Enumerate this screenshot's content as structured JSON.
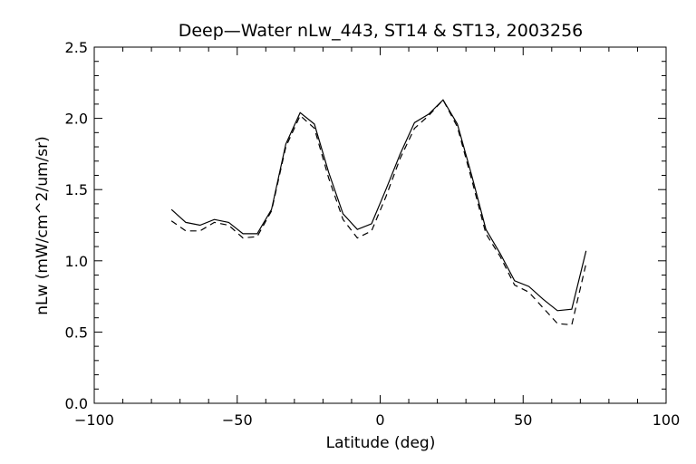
{
  "chart_data": {
    "type": "line",
    "title": "Deep—Water nLw_443, ST14 & ST13, 2003256",
    "xlabel": "Latitude (deg)",
    "ylabel": "nLw (mW/cm^2/um/sr)",
    "xlim": [
      -100,
      100
    ],
    "ylim": [
      0.0,
      2.5
    ],
    "x_major_ticks": [
      -100,
      -50,
      0,
      50,
      100
    ],
    "x_tick_labels": [
      "−100",
      "−50",
      "0",
      "50",
      "100"
    ],
    "x_minor_step": 10,
    "y_major_ticks": [
      0.0,
      0.5,
      1.0,
      1.5,
      2.0,
      2.5
    ],
    "y_tick_labels": [
      "0.0",
      "0.5",
      "1.0",
      "1.5",
      "2.0",
      "2.5"
    ],
    "y_minor_step": 0.1,
    "grid": false,
    "legend": "none",
    "line_color": "#000000",
    "series": [
      {
        "style": "solid",
        "x": [
          -73,
          -68,
          -63,
          -58,
          -53,
          -48,
          -43,
          -38,
          -33,
          -28,
          -23,
          -18,
          -13,
          -8,
          -3,
          2,
          7,
          12,
          17,
          22,
          27,
          32,
          37,
          42,
          47,
          52,
          57,
          62,
          67,
          72
        ],
        "y": [
          1.36,
          1.27,
          1.25,
          1.29,
          1.27,
          1.19,
          1.19,
          1.36,
          1.82,
          2.04,
          1.96,
          1.62,
          1.33,
          1.22,
          1.26,
          1.5,
          1.75,
          1.97,
          2.03,
          2.13,
          1.96,
          1.6,
          1.22,
          1.05,
          0.86,
          0.82,
          0.73,
          0.65,
          0.66,
          1.07
        ]
      },
      {
        "style": "dashed",
        "x": [
          -73,
          -68,
          -63,
          -58,
          -53,
          -48,
          -43,
          -38,
          -33,
          -28,
          -23,
          -18,
          -13,
          -8,
          -3,
          2,
          7,
          12,
          17,
          22,
          27,
          32,
          37,
          42,
          47,
          52,
          57,
          62,
          67,
          72
        ],
        "y": [
          1.28,
          1.21,
          1.21,
          1.27,
          1.25,
          1.16,
          1.17,
          1.35,
          1.8,
          2.02,
          1.93,
          1.58,
          1.29,
          1.16,
          1.21,
          1.45,
          1.72,
          1.93,
          2.02,
          2.13,
          1.94,
          1.57,
          1.19,
          1.03,
          0.83,
          0.78,
          0.67,
          0.56,
          0.55,
          0.98
        ]
      }
    ]
  }
}
